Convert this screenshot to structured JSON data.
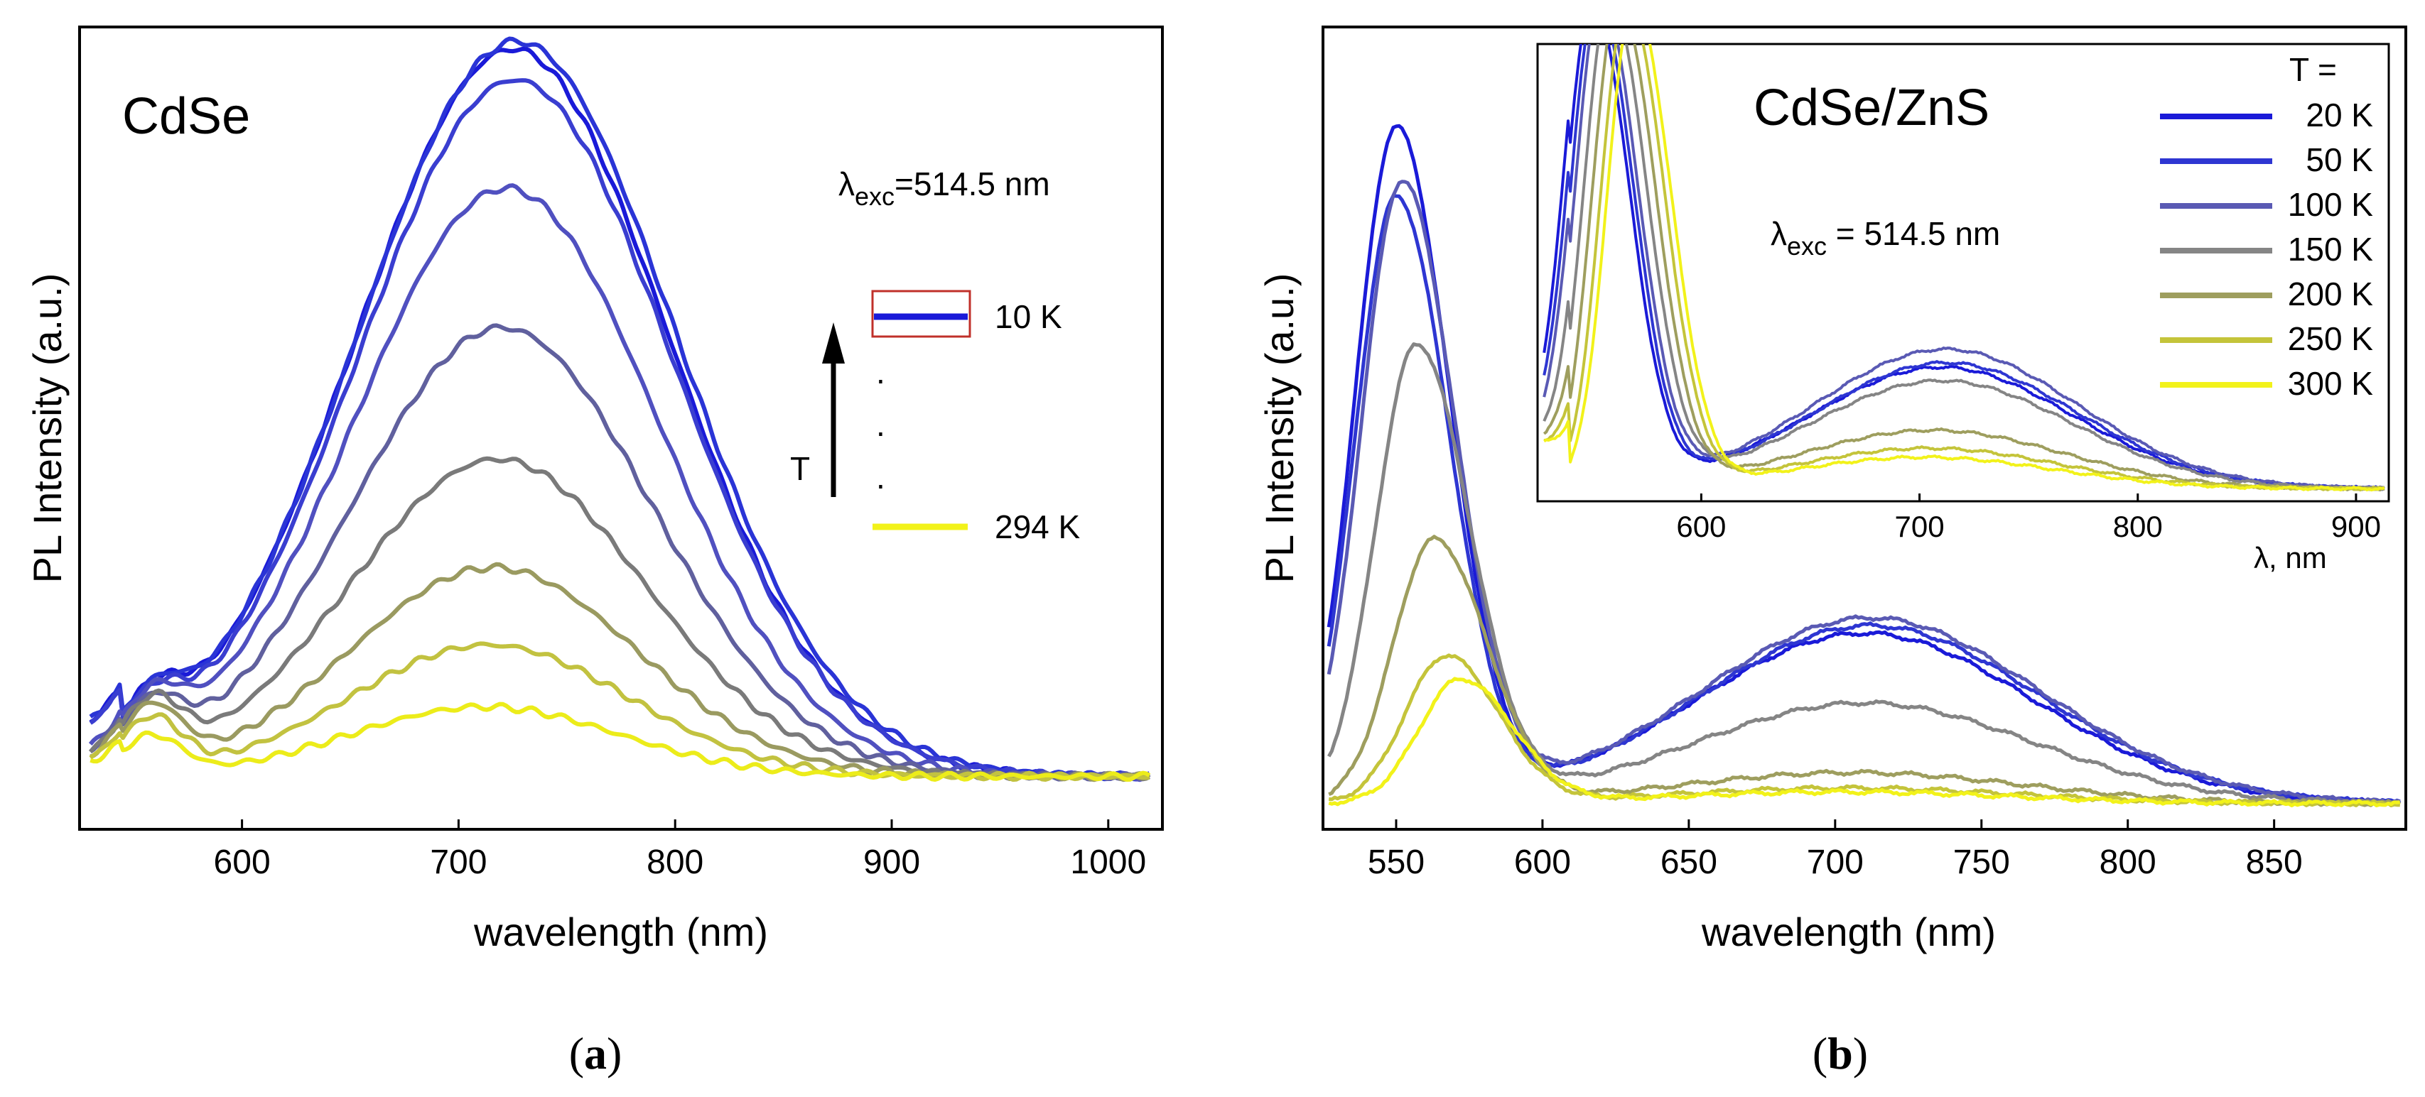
{
  "chart_data": [
    {
      "panel": "(a)",
      "panel_letter": "a",
      "type": "line",
      "title": "CdSe",
      "xlabel": "wavelength (nm)",
      "ylabel": "PL Intensity (a.u.)",
      "xlim": [
        525,
        1025
      ],
      "ylim": [
        0,
        100
      ],
      "xticks": [
        "600",
        "700",
        "800",
        "900",
        "1000"
      ],
      "excitation": {
        "lambda": "λ",
        "sub": "exc",
        "value": "=514.5 nm"
      },
      "legend": {
        "top_label": "10 K",
        "bottom_label": "294 K",
        "arrow_label": "T",
        "dot": "."
      },
      "series": [
        {
          "temp": "10 K",
          "color": "#1a1ad8",
          "peak": 94,
          "center": 725,
          "width": 72,
          "bump": 6
        },
        {
          "temp": "",
          "color": "#2a34d6",
          "peak": 95,
          "center": 727,
          "width": 73,
          "bump": 6
        },
        {
          "temp": "",
          "color": "#3a3ed0",
          "peak": 90,
          "center": 726,
          "width": 72,
          "bump": 6
        },
        {
          "temp": "",
          "color": "#5050c0",
          "peak": 76,
          "center": 722,
          "width": 70,
          "bump": 7
        },
        {
          "temp": "",
          "color": "#60609e",
          "peak": 58,
          "center": 720,
          "width": 69,
          "bump": 7
        },
        {
          "temp": "",
          "color": "#7a7a7a",
          "peak": 41,
          "center": 718,
          "width": 68,
          "bump": 8
        },
        {
          "temp": "",
          "color": "#9a9a60",
          "peak": 27,
          "center": 716,
          "width": 66,
          "bump": 8
        },
        {
          "temp": "",
          "color": "#c2c240",
          "peak": 17,
          "center": 714,
          "width": 64,
          "bump": 7
        },
        {
          "temp": "294 K",
          "color": "#ecec1a",
          "peak": 9,
          "center": 712,
          "width": 62,
          "bump": 5
        }
      ]
    },
    {
      "panel": "(b)",
      "panel_letter": "b",
      "type": "line",
      "title": "CdSe/ZnS",
      "xlabel": "wavelength (nm)",
      "ylabel": "PL Intensity (a.u.)",
      "xlim": [
        525,
        895
      ],
      "ylim": [
        0,
        100
      ],
      "xticks": [
        "550",
        "600",
        "650",
        "700",
        "750",
        "800",
        "850"
      ],
      "excitation": {
        "lambda": "λ",
        "sub": "exc",
        "value": " = 514.5 nm"
      },
      "legend_title": "T =",
      "series": [
        {
          "temp": "20 K",
          "color": "#1a1ad8",
          "p1": 87,
          "c1": 550,
          "p2": 22,
          "c2": 710
        },
        {
          "temp": "50 K",
          "color": "#2e36d2",
          "p1": 78,
          "c1": 550,
          "p2": 23,
          "c2": 712
        },
        {
          "temp": "100 K",
          "color": "#5a5ab4",
          "p1": 80,
          "c1": 552,
          "p2": 24,
          "c2": 712
        },
        {
          "temp": "150 K",
          "color": "#858585",
          "p1": 59,
          "c1": 557,
          "p2": 13,
          "c2": 710
        },
        {
          "temp": "200 K",
          "color": "#9e9e5e",
          "p1": 34,
          "c1": 563,
          "p2": 4,
          "c2": 706
        },
        {
          "temp": "250 K",
          "color": "#c4c43a",
          "p1": 19,
          "c1": 567,
          "p2": 2,
          "c2": 704
        },
        {
          "temp": "300 K",
          "color": "#f2f21a",
          "p1": 16,
          "c1": 572,
          "p2": 1.5,
          "c2": 702
        }
      ],
      "inset": {
        "xlabel": "λ, nm",
        "xlim": [
          525,
          915
        ],
        "xticks": [
          "600",
          "700",
          "800",
          "900"
        ],
        "series": [
          {
            "color": "#1a1ad8",
            "c1": 550,
            "p2": 27,
            "c2": 710
          },
          {
            "color": "#2e36d2",
            "c1": 552,
            "p2": 28,
            "c2": 712
          },
          {
            "color": "#5a5ab4",
            "c1": 554,
            "p2": 31,
            "c2": 712
          },
          {
            "color": "#858585",
            "c1": 558,
            "p2": 24,
            "c2": 710
          },
          {
            "color": "#9e9e5e",
            "c1": 562,
            "p2": 13,
            "c2": 706
          },
          {
            "color": "#c4c43a",
            "c1": 566,
            "p2": 9,
            "c2": 704
          },
          {
            "color": "#f2f21a",
            "c1": 569,
            "p2": 7,
            "c2": 702
          }
        ]
      }
    }
  ]
}
